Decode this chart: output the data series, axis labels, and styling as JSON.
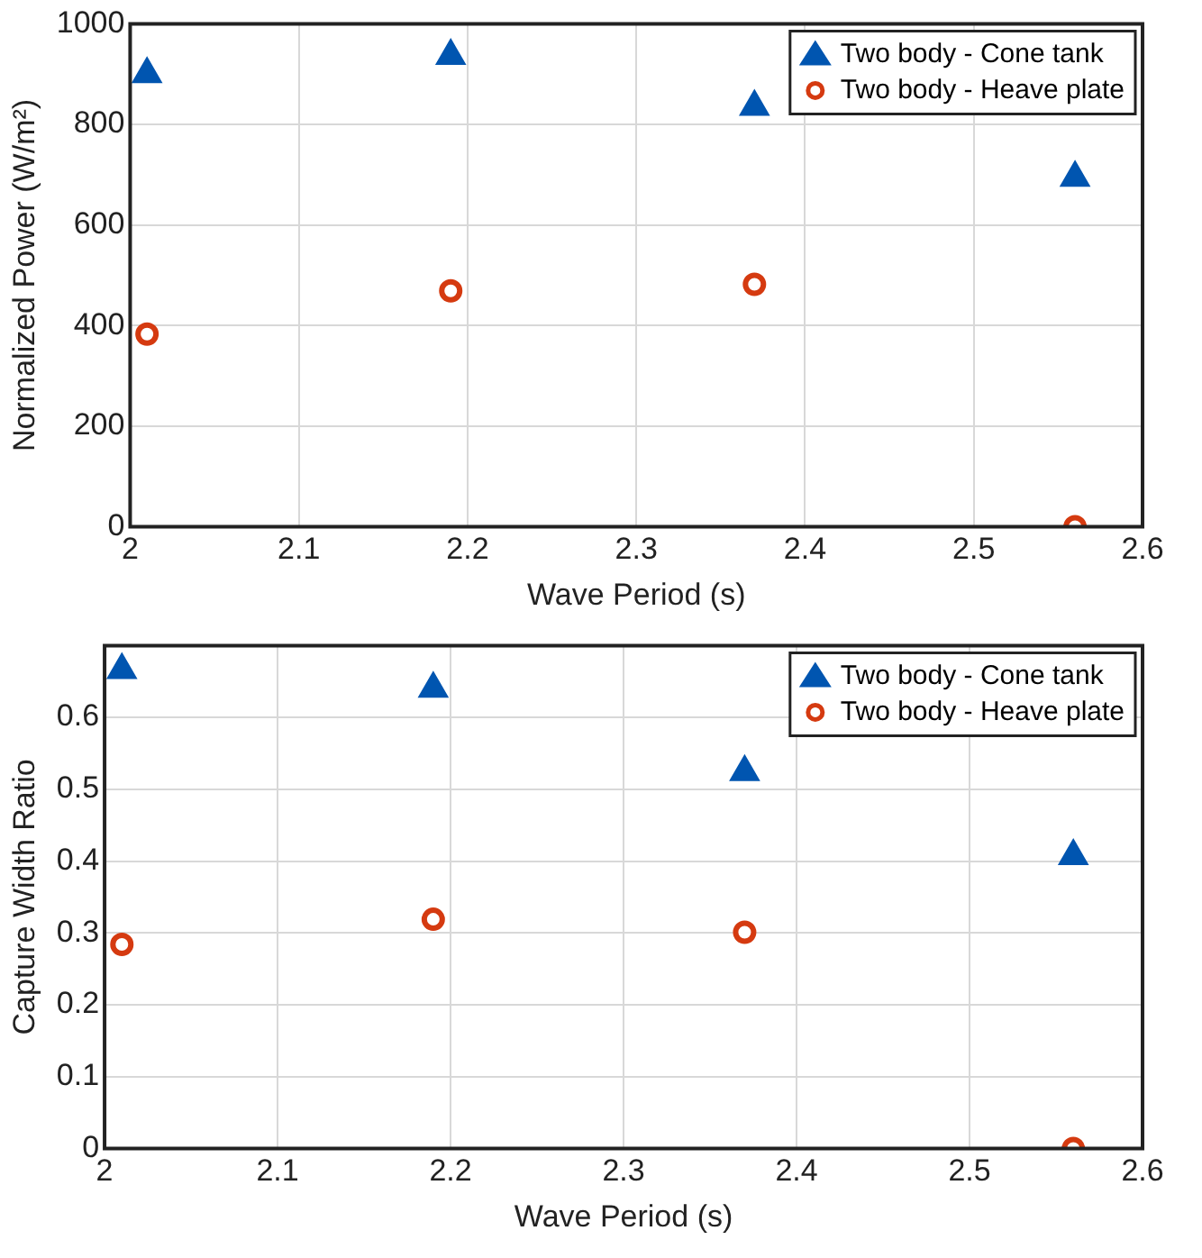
{
  "chart_data": [
    {
      "type": "scatter",
      "xlabel": "Wave Period (s)",
      "ylabel": "Normalized Power (W/m²)",
      "x": [
        2.01,
        2.19,
        2.37,
        2.56
      ],
      "xlim": [
        2,
        2.6
      ],
      "xticks": [
        2,
        2.1,
        2.2,
        2.3,
        2.4,
        2.5,
        2.6
      ],
      "ylim": [
        0,
        1000
      ],
      "yticks": [
        0,
        200,
        400,
        600,
        800,
        1000
      ],
      "grid": true,
      "legend": "top right",
      "series": [
        {
          "name": "Two body - Cone tank",
          "color": "#0055b0",
          "marker": "triangle",
          "values": [
            900,
            936,
            835,
            694
          ]
        },
        {
          "name": "Two body - Heave plate",
          "color": "#d53a10",
          "marker": "circle",
          "values": [
            383,
            469,
            482,
            0
          ]
        }
      ]
    },
    {
      "type": "scatter",
      "xlabel": "Wave Period (s)",
      "ylabel": "Capture Width Ratio",
      "x": [
        2.01,
        2.19,
        2.37,
        2.56
      ],
      "xlim": [
        2,
        2.6
      ],
      "xticks": [
        2,
        2.1,
        2.2,
        2.3,
        2.4,
        2.5,
        2.6
      ],
      "ylim": [
        0,
        0.7
      ],
      "yticks": [
        0,
        0.1,
        0.2,
        0.3,
        0.4,
        0.5,
        0.6
      ],
      "grid": true,
      "legend": "top right",
      "series": [
        {
          "name": "Two body - Cone tank",
          "color": "#0055b0",
          "marker": "triangle",
          "values": [
            0.666,
            0.64,
            0.524,
            0.407
          ]
        },
        {
          "name": "Two body - Heave plate",
          "color": "#d53a10",
          "marker": "circle",
          "values": [
            0.284,
            0.319,
            0.301,
            0
          ]
        }
      ]
    }
  ]
}
